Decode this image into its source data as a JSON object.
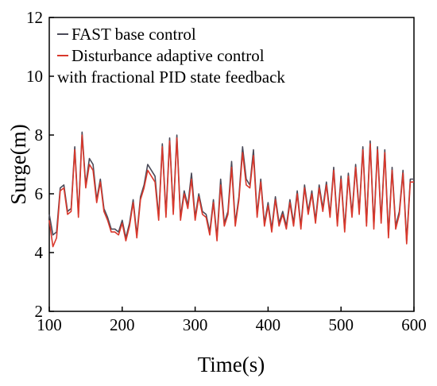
{
  "chart_data": {
    "type": "line",
    "xlabel": "Time(s)",
    "ylabel": "Surge(m)",
    "x": [
      100,
      105,
      110,
      115,
      120,
      125,
      130,
      135,
      140,
      145,
      150,
      155,
      160,
      165,
      170,
      175,
      180,
      185,
      190,
      195,
      200,
      205,
      210,
      215,
      220,
      225,
      230,
      235,
      240,
      245,
      250,
      255,
      260,
      265,
      270,
      275,
      280,
      285,
      290,
      295,
      300,
      305,
      310,
      315,
      320,
      325,
      330,
      335,
      340,
      345,
      350,
      355,
      360,
      365,
      370,
      375,
      380,
      385,
      390,
      395,
      400,
      405,
      410,
      415,
      420,
      425,
      430,
      435,
      440,
      445,
      450,
      455,
      460,
      465,
      470,
      475,
      480,
      485,
      490,
      495,
      500,
      505,
      510,
      515,
      520,
      525,
      530,
      535,
      540,
      545,
      550,
      555,
      560,
      565,
      570,
      575,
      580,
      585,
      590,
      595,
      600
    ],
    "series": [
      {
        "name": "FAST base control",
        "color": "#4a4a58",
        "values": [
          5.3,
          4.6,
          4.7,
          6.2,
          6.3,
          5.4,
          5.5,
          7.6,
          5.3,
          8.1,
          6.3,
          7.2,
          7.0,
          5.8,
          6.5,
          5.5,
          5.2,
          4.8,
          4.8,
          4.7,
          5.1,
          4.5,
          5.0,
          5.8,
          4.6,
          5.9,
          6.3,
          7.0,
          6.8,
          6.6,
          5.2,
          7.7,
          5.3,
          7.9,
          5.4,
          8.0,
          5.2,
          6.1,
          5.6,
          6.7,
          5.2,
          6.0,
          5.4,
          5.3,
          4.7,
          5.8,
          4.5,
          6.5,
          5.0,
          5.4,
          7.1,
          5.0,
          5.9,
          7.6,
          6.5,
          6.3,
          7.5,
          5.3,
          6.5,
          5.0,
          5.7,
          4.8,
          5.9,
          5.0,
          5.4,
          4.9,
          5.8,
          5.0,
          6.1,
          4.9,
          6.3,
          5.4,
          6.1,
          5.1,
          6.3,
          5.5,
          6.4,
          5.3,
          6.9,
          5.0,
          6.6,
          4.8,
          6.7,
          5.3,
          7.0,
          5.4,
          7.6,
          5.0,
          7.8,
          4.9,
          7.6,
          5.1,
          7.5,
          4.6,
          6.9,
          4.9,
          5.4,
          6.8,
          4.4,
          6.5,
          6.5
        ]
      },
      {
        "name": "Disturbance adaptive control with fractional PID state feedback",
        "color": "#d9382c",
        "values": [
          5.1,
          4.2,
          4.5,
          6.1,
          6.2,
          5.3,
          5.4,
          7.5,
          5.2,
          8.0,
          6.2,
          7.0,
          6.8,
          5.7,
          6.4,
          5.4,
          5.1,
          4.7,
          4.7,
          4.6,
          5.0,
          4.4,
          4.9,
          5.7,
          4.5,
          5.8,
          6.2,
          6.8,
          6.6,
          6.4,
          5.1,
          7.6,
          5.2,
          7.8,
          5.3,
          7.9,
          5.1,
          6.0,
          5.5,
          6.5,
          5.1,
          5.9,
          5.3,
          5.2,
          4.6,
          5.7,
          4.4,
          6.3,
          4.9,
          5.3,
          6.9,
          4.9,
          5.8,
          7.4,
          6.3,
          6.2,
          7.3,
          5.2,
          6.4,
          4.9,
          5.6,
          4.7,
          5.8,
          4.9,
          5.3,
          4.8,
          5.7,
          4.9,
          6.0,
          4.8,
          6.2,
          5.3,
          6.0,
          5.0,
          6.2,
          5.4,
          6.3,
          5.2,
          6.8,
          4.9,
          6.5,
          4.7,
          6.6,
          5.2,
          6.9,
          5.3,
          7.5,
          4.9,
          7.7,
          4.8,
          7.5,
          5.0,
          7.4,
          4.5,
          6.8,
          4.8,
          5.3,
          6.7,
          4.3,
          6.4,
          6.4
        ]
      }
    ],
    "xlim": [
      100,
      600
    ],
    "xticks": [
      100,
      200,
      300,
      400,
      500,
      600
    ],
    "ylim": [
      2,
      12
    ],
    "yticks": [
      2,
      4,
      6,
      8,
      10,
      12
    ],
    "legend": "upper left"
  }
}
